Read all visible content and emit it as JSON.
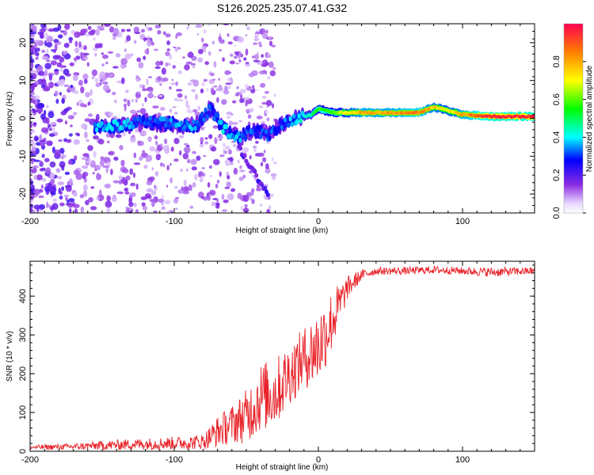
{
  "title": "S126.2025.235.07.41.G32",
  "chart_data": [
    {
      "type": "heatmap",
      "xlabel": "Height of straight line (km)",
      "ylabel": "Frequency (Hz)",
      "xlim": [
        -200,
        150
      ],
      "ylim": [
        -25,
        25
      ],
      "xticks": [
        -200,
        -100,
        0,
        100
      ],
      "xtick_labels": [
        "-200",
        "-100",
        "0",
        "100"
      ],
      "yticks": [
        -20,
        -10,
        0,
        10,
        20
      ],
      "ytick_labels": [
        "-20",
        "-10",
        "0",
        "10",
        "20"
      ],
      "colorbar": {
        "label": "Normalized spectral amplitude",
        "range": [
          0,
          1
        ],
        "ticks": [
          0.0,
          0.2,
          0.4,
          0.6,
          0.8
        ],
        "tick_labels": [
          "0.0",
          "0.2",
          "0.4",
          "0.6",
          "0.8"
        ]
      },
      "ridge": {
        "description_points_x": [
          -155,
          -140,
          -120,
          -100,
          -85,
          -75,
          -65,
          -55,
          -45,
          -35,
          -25,
          -15,
          -5,
          0,
          10,
          30,
          50,
          70,
          80,
          90,
          100,
          120,
          150
        ],
        "description_points_freq": [
          -2.5,
          -2.0,
          -1.0,
          -1.5,
          -2.0,
          2.5,
          -3.0,
          -5.0,
          -3.0,
          -4.5,
          -1.5,
          0.0,
          1.0,
          2.5,
          1.5,
          1.5,
          1.5,
          1.5,
          3.0,
          2.0,
          1.0,
          0.5,
          0.5
        ],
        "description_points_amp": [
          0.35,
          0.4,
          0.3,
          0.35,
          0.35,
          0.3,
          0.4,
          0.35,
          0.3,
          0.3,
          0.3,
          0.4,
          0.45,
          0.55,
          0.6,
          0.8,
          0.8,
          0.85,
          0.75,
          0.7,
          0.8,
          0.95,
          0.95
        ]
      }
    },
    {
      "type": "line",
      "xlabel": "Height of straight line (km)",
      "ylabel": "SNR (10 * v/v)",
      "xlim": [
        -200,
        150
      ],
      "ylim": [
        0,
        490
      ],
      "xticks": [
        -200,
        -100,
        0,
        100
      ],
      "xtick_labels": [
        "-200",
        "-100",
        "0",
        "100"
      ],
      "yticks": [
        0,
        100,
        200,
        300,
        400
      ],
      "ytick_labels": [
        "0",
        "100",
        "200",
        "300",
        "400"
      ],
      "line_color": "#e8242a",
      "envelope_x": [
        -200,
        -170,
        -150,
        -130,
        -110,
        -90,
        -80,
        -70,
        -60,
        -50,
        -40,
        -30,
        -20,
        -10,
        0,
        10,
        20,
        30,
        40,
        60,
        80,
        100,
        120,
        150
      ],
      "envelope_mean": [
        10,
        12,
        15,
        18,
        20,
        22,
        25,
        50,
        70,
        90,
        140,
        150,
        200,
        240,
        270,
        340,
        420,
        455,
        465,
        465,
        468,
        465,
        462,
        465
      ],
      "envelope_spread": [
        6,
        8,
        12,
        14,
        16,
        18,
        20,
        40,
        50,
        70,
        90,
        90,
        80,
        80,
        100,
        80,
        30,
        14,
        10,
        10,
        10,
        10,
        12,
        10
      ]
    }
  ]
}
